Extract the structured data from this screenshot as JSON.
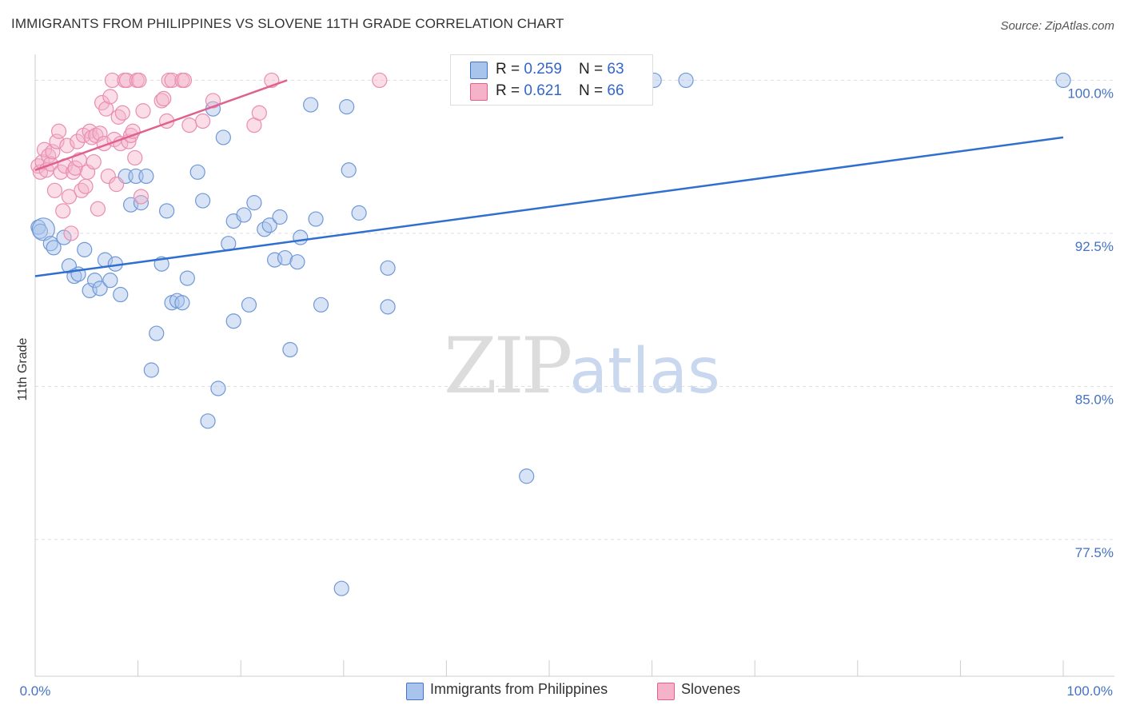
{
  "title": "IMMIGRANTS FROM PHILIPPINES VS SLOVENE 11TH GRADE CORRELATION CHART",
  "source": "Source: ZipAtlas.com",
  "watermark": {
    "zip": "ZIP",
    "atlas": "atlas"
  },
  "colors": {
    "blue": "#4472c4",
    "blue_fill": "#a9c4ec",
    "pink": "#e0608e",
    "pink_fill": "#f4b3c9",
    "grid": "#dddddd"
  },
  "legend": {
    "blue": {
      "r_label": "R = ",
      "r": "0.259",
      "n_label": "N = ",
      "n": "63"
    },
    "pink": {
      "r_label": "R = ",
      "r": "0.621",
      "n_label": "N = ",
      "n": "66"
    }
  },
  "bottom_legend": {
    "blue": "Immigrants from Philippines",
    "pink": "Slovenes"
  },
  "chart_data": {
    "type": "scatter",
    "title": "IMMIGRANTS FROM PHILIPPINES VS SLOVENE 11TH GRADE CORRELATION CHART",
    "xlabel": "",
    "ylabel": "11th Grade",
    "xlim": [
      0,
      100
    ],
    "ylim": [
      70.8,
      100.8
    ],
    "x_tick_labels": [
      {
        "value": 0,
        "label": "0.0%"
      },
      {
        "value": 100,
        "label": "100.0%"
      }
    ],
    "y_ticks": [
      {
        "value": 100,
        "label": "100.0%"
      },
      {
        "value": 92.5,
        "label": "92.5%"
      },
      {
        "value": 85,
        "label": "85.0%"
      },
      {
        "value": 77.5,
        "label": "77.5%"
      }
    ],
    "series": [
      {
        "name": "Immigrants from Philippines",
        "color": "#4472c4",
        "trend": {
          "x": [
            0,
            100
          ],
          "y": [
            90.4,
            97.2
          ]
        },
        "points": [
          [
            0.3,
            92.8
          ],
          [
            0.5,
            92.6
          ],
          [
            0.8,
            92.7
          ],
          [
            1.5,
            92.0
          ],
          [
            1.8,
            91.8
          ],
          [
            2.8,
            92.3
          ],
          [
            3.3,
            90.9
          ],
          [
            3.8,
            90.4
          ],
          [
            4.2,
            90.5
          ],
          [
            4.8,
            91.7
          ],
          [
            5.3,
            89.7
          ],
          [
            5.8,
            90.2
          ],
          [
            6.3,
            89.8
          ],
          [
            6.8,
            91.2
          ],
          [
            7.3,
            90.2
          ],
          [
            7.8,
            91.0
          ],
          [
            8.3,
            89.5
          ],
          [
            8.8,
            95.3
          ],
          [
            9.3,
            93.9
          ],
          [
            9.8,
            95.3
          ],
          [
            10.3,
            94.0
          ],
          [
            10.8,
            95.3
          ],
          [
            11.3,
            85.8
          ],
          [
            11.8,
            87.6
          ],
          [
            12.3,
            91.0
          ],
          [
            12.8,
            93.6
          ],
          [
            13.3,
            89.1
          ],
          [
            13.8,
            89.2
          ],
          [
            14.3,
            89.1
          ],
          [
            14.8,
            90.3
          ],
          [
            15.8,
            95.5
          ],
          [
            16.3,
            94.1
          ],
          [
            16.8,
            83.3
          ],
          [
            17.3,
            98.6
          ],
          [
            17.8,
            84.9
          ],
          [
            18.3,
            97.2
          ],
          [
            18.8,
            92.0
          ],
          [
            19.3,
            93.1
          ],
          [
            19.3,
            88.2
          ],
          [
            20.3,
            93.4
          ],
          [
            20.8,
            89.0
          ],
          [
            21.3,
            94.0
          ],
          [
            22.3,
            92.7
          ],
          [
            22.8,
            92.9
          ],
          [
            23.3,
            91.2
          ],
          [
            23.8,
            93.3
          ],
          [
            24.3,
            91.3
          ],
          [
            24.8,
            86.8
          ],
          [
            25.5,
            91.1
          ],
          [
            25.8,
            92.3
          ],
          [
            26.8,
            98.8
          ],
          [
            27.3,
            93.2
          ],
          [
            27.8,
            89.0
          ],
          [
            29.8,
            75.1
          ],
          [
            30.3,
            98.7
          ],
          [
            30.5,
            95.6
          ],
          [
            31.5,
            93.5
          ],
          [
            34.3,
            90.8
          ],
          [
            34.3,
            88.9
          ],
          [
            47.8,
            80.6
          ],
          [
            60.2,
            100.0
          ],
          [
            63.3,
            100.0
          ],
          [
            100.0,
            100.0
          ]
        ]
      },
      {
        "name": "Slovenes",
        "color": "#e0608e",
        "trend": {
          "x": [
            0,
            24.5
          ],
          "y": [
            95.6,
            100.0
          ]
        },
        "points": [
          [
            0.3,
            95.8
          ],
          [
            0.5,
            95.5
          ],
          [
            0.7,
            96.0
          ],
          [
            0.9,
            96.6
          ],
          [
            1.1,
            95.6
          ],
          [
            1.3,
            96.3
          ],
          [
            1.5,
            95.9
          ],
          [
            1.7,
            96.5
          ],
          [
            1.9,
            94.6
          ],
          [
            2.1,
            97.0
          ],
          [
            2.3,
            97.5
          ],
          [
            2.5,
            95.5
          ],
          [
            2.7,
            93.6
          ],
          [
            2.9,
            95.8
          ],
          [
            3.1,
            96.8
          ],
          [
            3.3,
            94.3
          ],
          [
            3.5,
            92.5
          ],
          [
            3.7,
            95.5
          ],
          [
            3.9,
            95.7
          ],
          [
            4.1,
            97.0
          ],
          [
            4.3,
            96.1
          ],
          [
            4.5,
            94.6
          ],
          [
            4.7,
            97.3
          ],
          [
            4.9,
            94.8
          ],
          [
            5.1,
            95.5
          ],
          [
            5.3,
            97.5
          ],
          [
            5.5,
            97.2
          ],
          [
            5.7,
            96.0
          ],
          [
            5.9,
            97.3
          ],
          [
            6.1,
            93.7
          ],
          [
            6.3,
            97.4
          ],
          [
            6.5,
            98.9
          ],
          [
            6.7,
            96.9
          ],
          [
            6.9,
            98.6
          ],
          [
            7.1,
            95.3
          ],
          [
            7.3,
            99.2
          ],
          [
            7.5,
            100.0
          ],
          [
            7.7,
            97.1
          ],
          [
            7.9,
            94.9
          ],
          [
            8.1,
            98.2
          ],
          [
            8.3,
            96.9
          ],
          [
            8.5,
            98.4
          ],
          [
            8.7,
            100.0
          ],
          [
            8.9,
            100.0
          ],
          [
            9.1,
            97.0
          ],
          [
            9.3,
            97.3
          ],
          [
            9.5,
            97.5
          ],
          [
            9.7,
            96.2
          ],
          [
            9.9,
            100.0
          ],
          [
            10.1,
            100.0
          ],
          [
            10.3,
            94.3
          ],
          [
            10.5,
            98.5
          ],
          [
            12.3,
            99.0
          ],
          [
            12.5,
            99.1
          ],
          [
            12.8,
            98.0
          ],
          [
            13.0,
            100.0
          ],
          [
            13.3,
            100.0
          ],
          [
            14.3,
            100.0
          ],
          [
            14.5,
            100.0
          ],
          [
            15.0,
            97.8
          ],
          [
            16.3,
            98.0
          ],
          [
            17.3,
            99.0
          ],
          [
            21.3,
            97.8
          ],
          [
            21.8,
            98.4
          ],
          [
            23.0,
            100.0
          ],
          [
            33.5,
            100.0
          ]
        ]
      }
    ]
  }
}
